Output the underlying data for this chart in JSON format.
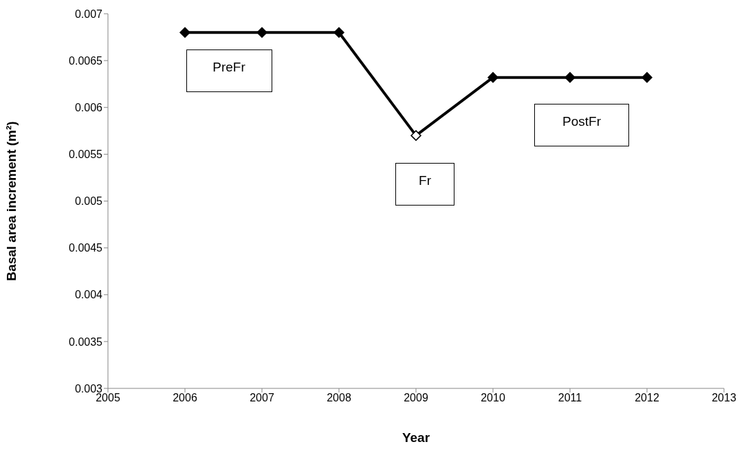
{
  "chart_data": {
    "type": "line",
    "xlabel": "Year",
    "ylabel": "Basal area increment (m²)",
    "x": [
      2006,
      2007,
      2008,
      2009,
      2010,
      2011,
      2012
    ],
    "series": [
      {
        "color": "#000000",
        "colors": [
          "#000000",
          "#000000",
          "#000000",
          "#ffffff",
          "#000000",
          "#000000",
          "#000000"
        ],
        "values": [
          0.0068,
          0.0068,
          0.0068,
          0.0057,
          0.00632,
          0.00632,
          0.00632
        ]
      }
    ],
    "xlim": [
      2005,
      2013
    ],
    "xticks": [
      2005,
      2006,
      2007,
      2008,
      2009,
      2010,
      2011,
      2012,
      2013
    ],
    "ylim": [
      0.003,
      0.007
    ],
    "yticks": [
      0.003,
      0.0035,
      0.004,
      0.0045,
      0.005,
      0.0055,
      0.006,
      0.0065,
      0.007
    ],
    "grid": false,
    "legend": false,
    "marker": "diamond",
    "line_style": "solid",
    "annotations": [
      "PreFr",
      "Fr",
      "PostFr"
    ]
  }
}
